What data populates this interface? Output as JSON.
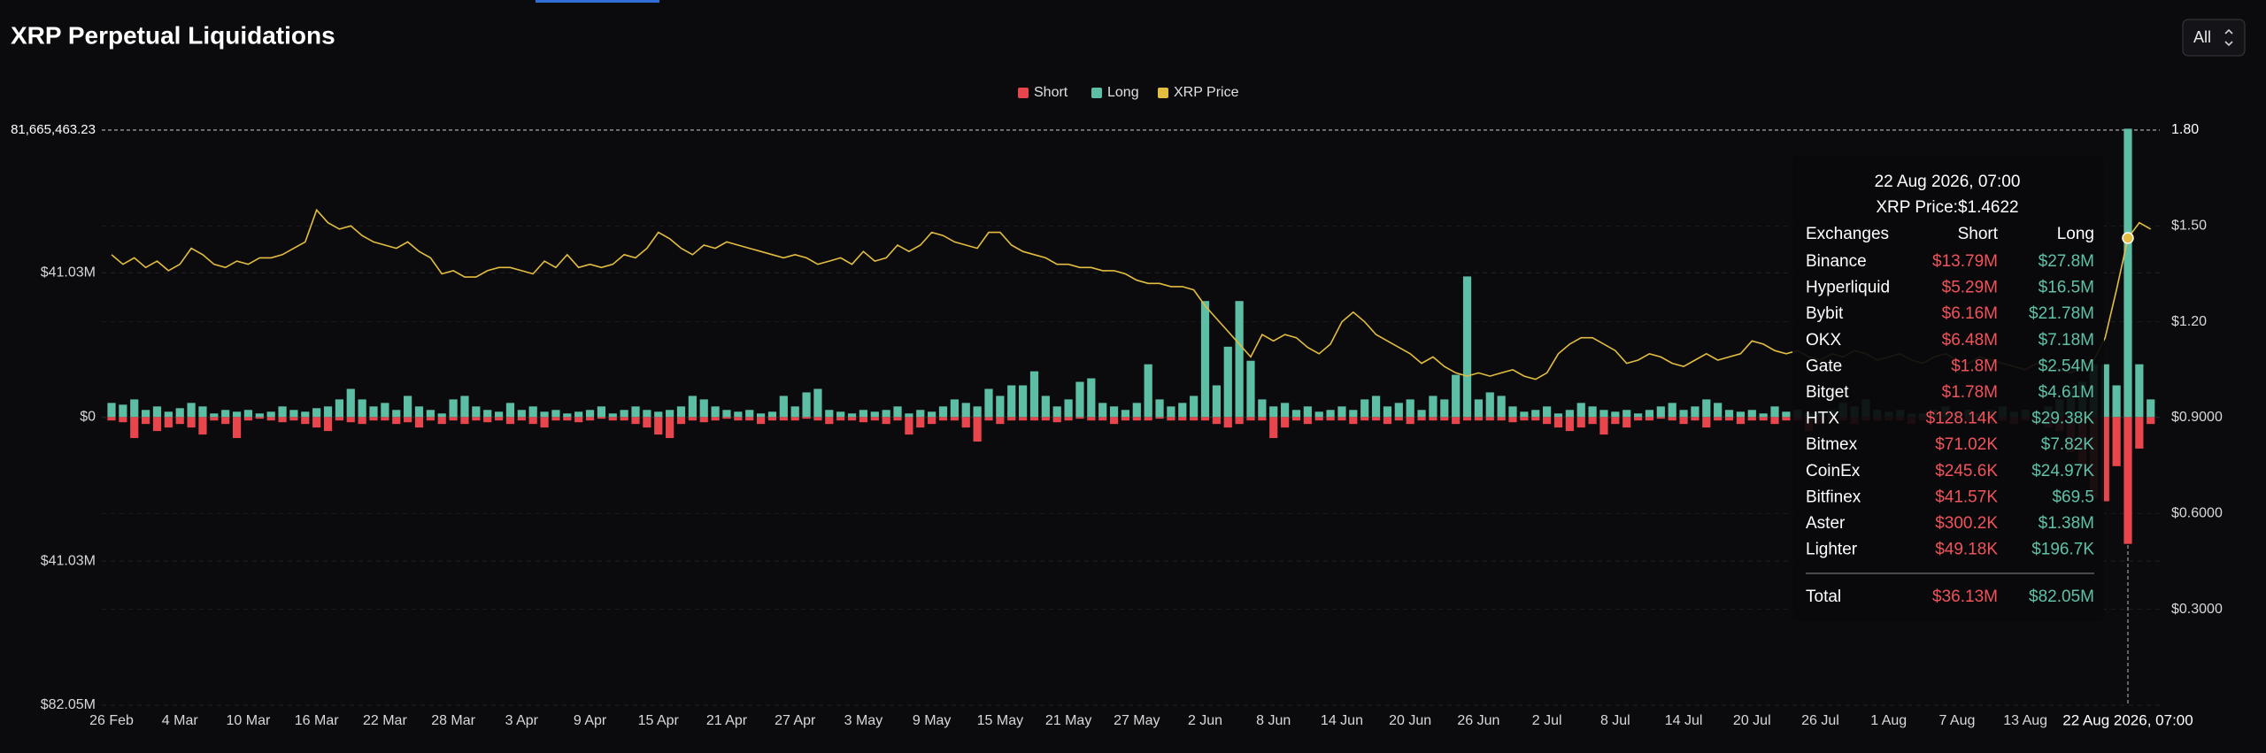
{
  "chart_data": {
    "type": "bar",
    "title": "XRP Perpetual Liquidations",
    "range_button": "All",
    "grid": true,
    "categories": [
      "26 Feb",
      null,
      null,
      null,
      null,
      null,
      "4 Mar",
      null,
      null,
      null,
      null,
      null,
      "10 Mar",
      null,
      null,
      null,
      null,
      null,
      "16 Mar",
      null,
      null,
      null,
      null,
      null,
      "22 Mar",
      null,
      null,
      null,
      null,
      null,
      "28 Mar",
      null,
      null,
      null,
      null,
      null,
      "3 Apr",
      null,
      null,
      null,
      null,
      null,
      "9 Apr",
      null,
      null,
      null,
      null,
      null,
      "15 Apr",
      null,
      null,
      null,
      null,
      null,
      "21 Apr",
      null,
      null,
      null,
      null,
      null,
      "27 Apr",
      null,
      null,
      null,
      null,
      null,
      "3 May",
      null,
      null,
      null,
      null,
      null,
      "9 May",
      null,
      null,
      null,
      null,
      null,
      "15 May",
      null,
      null,
      null,
      null,
      null,
      "21 May",
      null,
      null,
      null,
      null,
      null,
      "27 May",
      null,
      null,
      null,
      null,
      null,
      "2 Jun",
      null,
      null,
      null,
      null,
      null,
      "8 Jun",
      null,
      null,
      null,
      null,
      null,
      "14 Jun",
      null,
      null,
      null,
      null,
      null,
      "20 Jun",
      null,
      null,
      null,
      null,
      null,
      "26 Jun",
      null,
      null,
      null,
      null,
      null,
      "2 Jul",
      null,
      null,
      null,
      null,
      null,
      "8 Jul",
      null,
      null,
      null,
      null,
      null,
      "14 Jul",
      null,
      null,
      null,
      null,
      null,
      "20 Jul",
      null,
      null,
      null,
      null,
      null,
      "26 Jul",
      null,
      null,
      null,
      null,
      null,
      "1 Aug",
      null,
      null,
      null,
      null,
      null,
      "7 Aug",
      null,
      null,
      null,
      null,
      null,
      "13 Aug",
      null,
      null,
      null,
      null,
      null,
      null,
      null,
      null,
      "22 Aug 2026, 07:00",
      null,
      null
    ],
    "ylim": [
      -82050000,
      81665463.23
    ],
    "yticks": [
      {
        "value": 81665463.23,
        "label": "81,665,463.23"
      },
      {
        "value": 41030000,
        "label": "$41.03M"
      },
      {
        "value": 0,
        "label": "$0"
      },
      {
        "value": -41030000,
        "label": "$41.03M"
      },
      {
        "value": -82050000,
        "label": "$82.05M"
      }
    ],
    "y2lim": [
      0,
      1.8
    ],
    "y2ticks": [
      {
        "value": 1.8,
        "label": "1.80"
      },
      {
        "value": 1.5,
        "label": "$1.50"
      },
      {
        "value": 1.2,
        "label": "$1.20"
      },
      {
        "value": 0.9,
        "label": "$0.9000"
      },
      {
        "value": 0.6,
        "label": "$0.6000"
      },
      {
        "value": 0.3,
        "label": "$0.3000"
      }
    ],
    "series": [
      {
        "name": "Short",
        "color": "#e8454c",
        "values": [
          -1000000.0,
          -1500000.0,
          -6000000.0,
          -2000000.0,
          -4000000.0,
          -3000000.0,
          -2000000.0,
          -3000000.0,
          -5000000.0,
          -1000000.0,
          -2000000.0,
          -6000000.0,
          -1000000.0,
          -500000.0,
          -1000000.0,
          -1500000.0,
          -1000000.0,
          -2000000.0,
          -3000000.0,
          -4000000.0,
          -1000000.0,
          -1500000.0,
          -2000000.0,
          -1000000.0,
          -1000000.0,
          -2000000.0,
          -1500000.0,
          -3000000.0,
          -1000000.0,
          -2000000.0,
          -1000000.0,
          -2000000.0,
          -1000000.0,
          -1500000.0,
          -1000000.0,
          -2000000.0,
          -1000000.0,
          -2000000.0,
          -3000000.0,
          -1000000.0,
          -1000000.0,
          -1500000.0,
          -1000000.0,
          -500000.0,
          -1000000.0,
          -1000000.0,
          -2000000.0,
          -3000000.0,
          -5000000.0,
          -6000000.0,
          -2000000.0,
          -1000000.0,
          -1500000.0,
          -1000000.0,
          -500000.0,
          -1000000.0,
          -1000000.0,
          -2000000.0,
          -1000000.0,
          -1000000.0,
          -1000000.0,
          -500000.0,
          -1000000.0,
          -2000000.0,
          -1000000.0,
          -1000000.0,
          -1500000.0,
          -1000000.0,
          -2000000.0,
          -1000000.0,
          -5000000.0,
          -3000000.0,
          -2000000.0,
          -1000000.0,
          -1000000.0,
          -3000000.0,
          -7000000.0,
          -1000000.0,
          -2000000.0,
          -1000000.0,
          -1000000.0,
          -1000000.0,
          -1000000.0,
          -1500000.0,
          -1000000.0,
          -500000.0,
          -1000000.0,
          -1000000.0,
          -2000000.0,
          -1000000.0,
          -1000000.0,
          -1000000.0,
          -500000.0,
          -1000000.0,
          -1000000.0,
          -1000000.0,
          -1000000.0,
          -2000000.0,
          -3000000.0,
          -2000000.0,
          -1000000.0,
          -1000000.0,
          -6000000.0,
          -3000000.0,
          -1000000.0,
          -2000000.0,
          -1000000.0,
          -1000000.0,
          -1000000.0,
          -2000000.0,
          -1000000.0,
          -1000000.0,
          -2000000.0,
          -1000000.0,
          -2000000.0,
          -1000000.0,
          -1000000.0,
          -1000000.0,
          -2000000.0,
          -1000000.0,
          -1000000.0,
          -1000000.0,
          -1000000.0,
          -1500000.0,
          -1000000.0,
          -1000000.0,
          -2000000.0,
          -3000000.0,
          -4000000.0,
          -3000000.0,
          -2000000.0,
          -5000000.0,
          -2000000.0,
          -3000000.0,
          -1000000.0,
          -1000000.0,
          -500000.0,
          -1000000.0,
          -2000000.0,
          -1000000.0,
          -3000000.0,
          -1000000.0,
          -1000000.0,
          -2000000.0,
          -1000000.0,
          -1000000.0,
          -2000000.0,
          -1000000.0,
          -1000000.0,
          -4000000.0,
          -2000000.0,
          -1000000.0,
          -1000000.0,
          -2000000.0,
          -1000000.0,
          -1000000.0,
          -1000000.0,
          -1000000.0,
          -2000000.0,
          -1000000.0,
          -1000000.0,
          -2000000.0,
          -1000000.0,
          -1500000.0,
          -1000000.0,
          -2000000.0,
          -1000000.0,
          -2000000.0,
          -1000000.0,
          -2000000.0,
          -3000000.0,
          -4000000.0,
          -10000000.0,
          -15000000.0,
          -23000000.0,
          -24000000.0,
          -14000000.0,
          -36130000.0,
          -9000000.0,
          -2000000.0
        ]
      },
      {
        "name": "Long",
        "color": "#5cbfa5",
        "values": [
          4000000.0,
          3500000.0,
          5000000.0,
          2000000.0,
          3000000.0,
          1500000.0,
          2500000.0,
          4000000.0,
          3000000.0,
          1000000.0,
          2000000.0,
          1500000.0,
          2000000.0,
          1000000.0,
          1500000.0,
          3000000.0,
          2000000.0,
          1500000.0,
          2500000.0,
          3000000.0,
          5000000.0,
          8000000.0,
          5000000.0,
          3000000.0,
          4000000.0,
          2000000.0,
          6000000.0,
          3000000.0,
          2000000.0,
          1000000.0,
          5000000.0,
          6000000.0,
          3000000.0,
          2000000.0,
          1500000.0,
          4000000.0,
          2000000.0,
          3000000.0,
          1500000.0,
          2000000.0,
          1000000.0,
          1500000.0,
          2000000.0,
          3000000.0,
          1000000.0,
          2000000.0,
          3000000.0,
          2000000.0,
          1500000.0,
          2000000.0,
          3000000.0,
          6000000.0,
          5000000.0,
          3000000.0,
          2000000.0,
          1500000.0,
          2000000.0,
          1000000.0,
          1500000.0,
          6000000.0,
          3000000.0,
          7000000.0,
          8000000.0,
          2000000.0,
          1500000.0,
          1000000.0,
          2000000.0,
          1500000.0,
          2000000.0,
          3000000.0,
          1000000.0,
          2000000.0,
          1500000.0,
          3000000.0,
          5000000.0,
          4000000.0,
          3000000.0,
          8000000.0,
          6000000.0,
          9000000.0,
          9000000.0,
          13000000.0,
          6000000.0,
          3000000.0,
          5000000.0,
          10000000.0,
          11000000.0,
          4000000.0,
          3000000.0,
          2000000.0,
          4000000.0,
          15000000.0,
          5000000.0,
          3000000.0,
          4000000.0,
          6000000.0,
          33000000.0,
          9000000.0,
          20000000.0,
          33000000.0,
          16000000.0,
          5000000.0,
          3000000.0,
          4000000.0,
          2000000.0,
          3000000.0,
          1500000.0,
          2000000.0,
          3000000.0,
          2000000.0,
          5000000.0,
          6000000.0,
          3000000.0,
          4000000.0,
          5000000.0,
          2000000.0,
          6000000.0,
          5000000.0,
          12000000.0,
          40000000.0,
          5000000.0,
          7000000.0,
          6000000.0,
          3000000.0,
          1500000.0,
          2000000.0,
          3000000.0,
          1000000.0,
          2000000.0,
          4000000.0,
          3000000.0,
          2000000.0,
          1500000.0,
          2000000.0,
          1000000.0,
          2000000.0,
          3000000.0,
          4000000.0,
          2000000.0,
          3000000.0,
          5000000.0,
          4000000.0,
          2000000.0,
          1500000.0,
          2000000.0,
          1000000.0,
          3000000.0,
          1500000.0,
          2000000.0,
          1000000.0,
          1500000.0,
          2000000.0,
          4000000.0,
          3000000.0,
          5000000.0,
          2000000.0,
          1500000.0,
          2000000.0,
          1000000.0,
          1000000.0,
          2000000.0,
          3000000.0,
          1500000.0,
          2000000.0,
          1000000.0,
          2000000.0,
          3000000.0,
          1500000.0,
          2000000.0,
          1000000.0,
          3000000.0,
          5000000.0,
          8000000.0,
          10000000.0,
          15000000.0,
          15000000.0,
          9000000.0,
          82050000.0,
          15000000.0,
          5000000.0
        ]
      },
      {
        "name": "XRP Price",
        "color": "#e3bd3f",
        "axis": "y2",
        "type": "line",
        "values": [
          1.41,
          1.38,
          1.4,
          1.37,
          1.39,
          1.36,
          1.38,
          1.43,
          1.41,
          1.38,
          1.37,
          1.39,
          1.38,
          1.4,
          1.4,
          1.41,
          1.43,
          1.45,
          1.55,
          1.51,
          1.49,
          1.5,
          1.47,
          1.45,
          1.44,
          1.43,
          1.45,
          1.42,
          1.4,
          1.35,
          1.36,
          1.34,
          1.34,
          1.36,
          1.37,
          1.37,
          1.36,
          1.35,
          1.39,
          1.37,
          1.41,
          1.37,
          1.38,
          1.37,
          1.38,
          1.41,
          1.4,
          1.43,
          1.48,
          1.46,
          1.43,
          1.41,
          1.44,
          1.43,
          1.45,
          1.44,
          1.43,
          1.42,
          1.41,
          1.4,
          1.41,
          1.4,
          1.38,
          1.39,
          1.4,
          1.38,
          1.42,
          1.39,
          1.4,
          1.44,
          1.42,
          1.44,
          1.48,
          1.47,
          1.45,
          1.44,
          1.43,
          1.48,
          1.48,
          1.44,
          1.42,
          1.41,
          1.4,
          1.38,
          1.38,
          1.37,
          1.37,
          1.36,
          1.36,
          1.35,
          1.33,
          1.32,
          1.32,
          1.31,
          1.31,
          1.3,
          1.25,
          1.21,
          1.17,
          1.13,
          1.09,
          1.16,
          1.14,
          1.16,
          1.15,
          1.12,
          1.1,
          1.13,
          1.2,
          1.23,
          1.2,
          1.16,
          1.14,
          1.12,
          1.1,
          1.07,
          1.09,
          1.06,
          1.04,
          1.03,
          1.04,
          1.03,
          1.04,
          1.05,
          1.03,
          1.02,
          1.04,
          1.1,
          1.13,
          1.15,
          1.15,
          1.13,
          1.11,
          1.07,
          1.08,
          1.1,
          1.09,
          1.07,
          1.06,
          1.08,
          1.1,
          1.08,
          1.09,
          1.1,
          1.14,
          1.13,
          1.11,
          1.1,
          1.11,
          1.09,
          1.08,
          1.1,
          1.09,
          1.11,
          1.1,
          1.08,
          1.09,
          1.1,
          1.08,
          1.07,
          1.09,
          1.1,
          1.08,
          1.07,
          1.09,
          1.08,
          1.07,
          1.06,
          1.05,
          1.07,
          1.06,
          1.05,
          1.04,
          1.06,
          1.08,
          1.15,
          1.3,
          1.4622,
          1.51,
          1.49
        ]
      }
    ],
    "tooltip": {
      "title": "22 Aug 2026, 07:00",
      "price": "XRP Price:$1.4622",
      "columns": [
        "Exchanges",
        "Short",
        "Long"
      ],
      "rows": [
        [
          "Binance",
          "$13.79M",
          "$27.8M"
        ],
        [
          "Hyperliquid",
          "$5.29M",
          "$16.5M"
        ],
        [
          "Bybit",
          "$6.16M",
          "$21.78M"
        ],
        [
          "OKX",
          "$6.48M",
          "$7.18M"
        ],
        [
          "Gate",
          "$1.8M",
          "$2.54M"
        ],
        [
          "Bitget",
          "$1.78M",
          "$4.61M"
        ],
        [
          "HTX",
          "$128.14K",
          "$29.38K"
        ],
        [
          "Bitmex",
          "$71.02K",
          "$7.82K"
        ],
        [
          "CoinEx",
          "$245.6K",
          "$24.97K"
        ],
        [
          "Bitfinex",
          "$41.57K",
          "$69.5"
        ],
        [
          "Aster",
          "$300.2K",
          "$1.38M"
        ],
        [
          "Lighter",
          "$49.18K",
          "$196.7K"
        ]
      ],
      "total": [
        "Total",
        "$36.13M",
        "$82.05M"
      ]
    }
  }
}
